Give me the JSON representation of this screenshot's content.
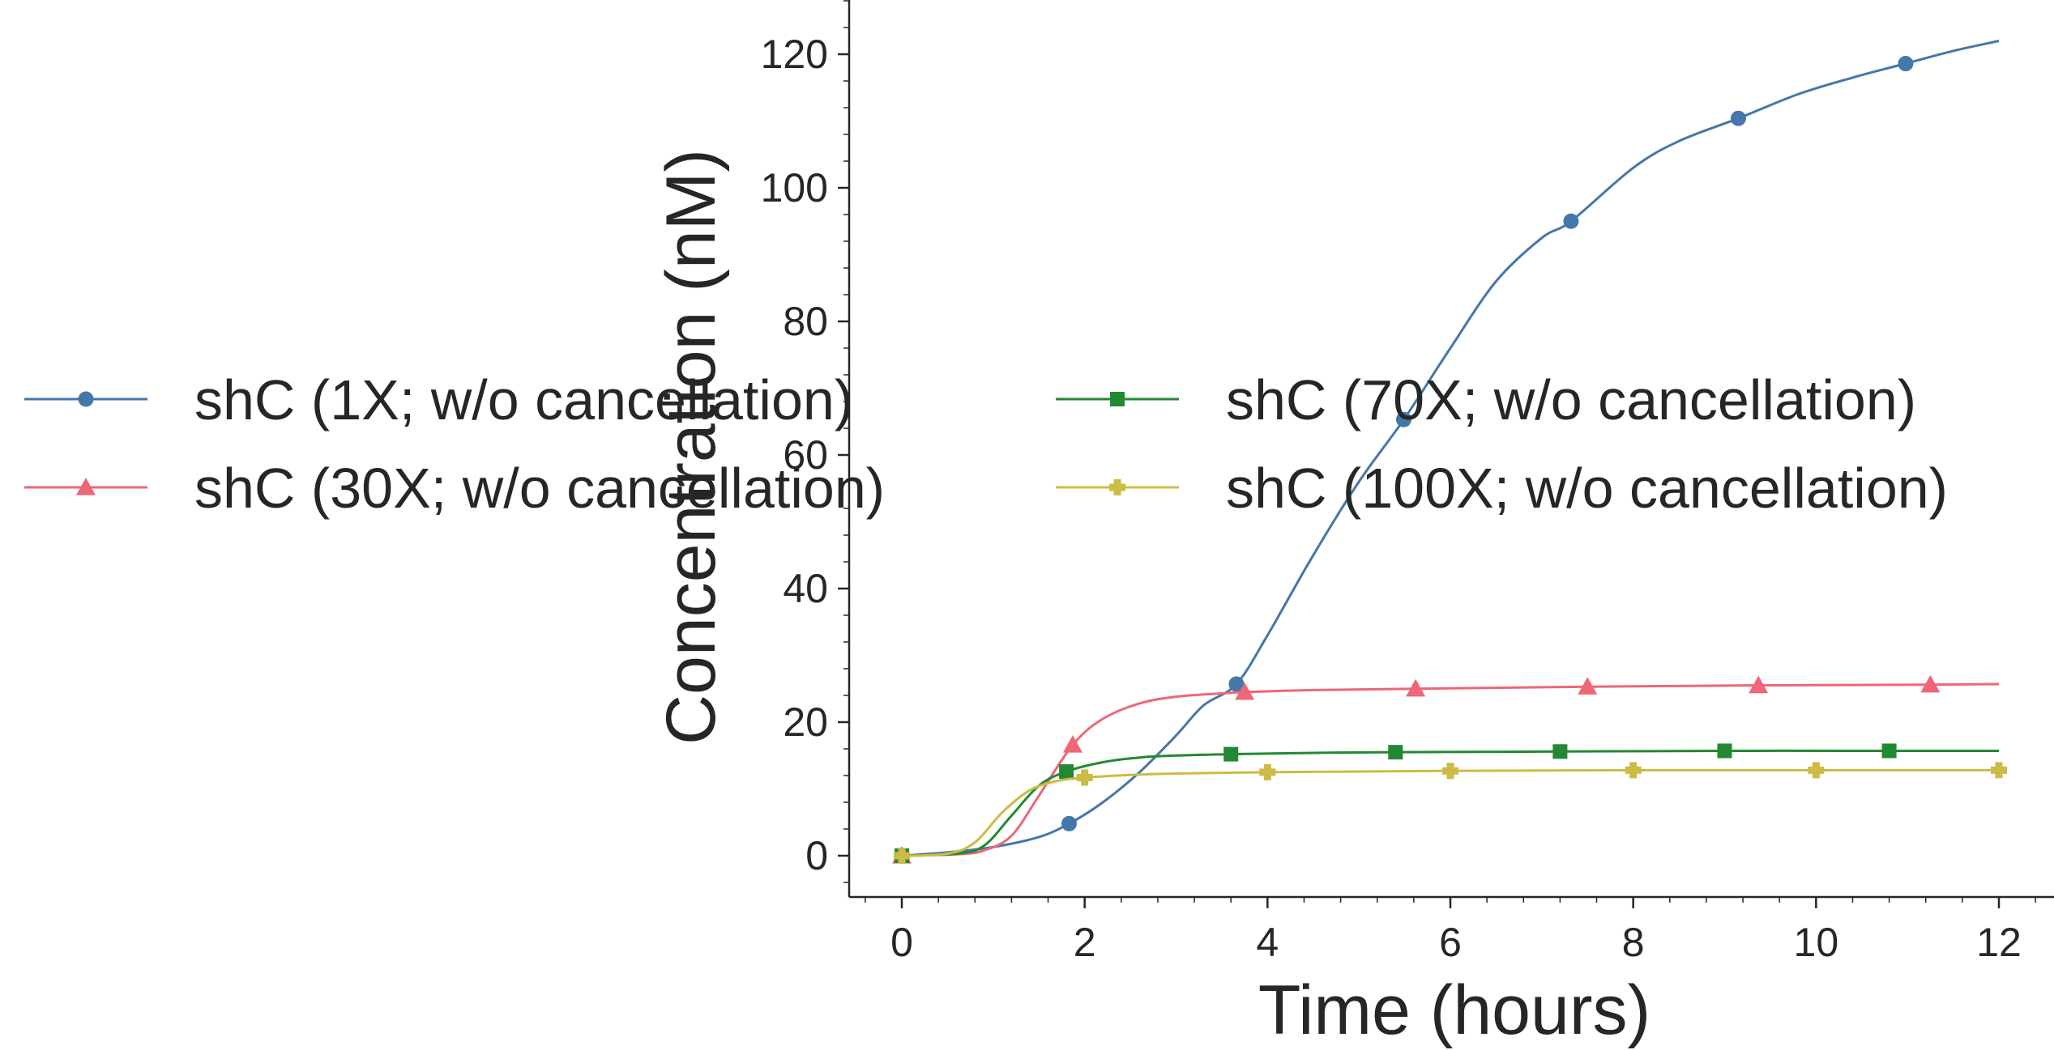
{
  "chart_data": {
    "type": "line",
    "title": "",
    "xlabel": "Time (hours)",
    "ylabel": "Concentration (nM)",
    "xlim": [
      -0.6,
      12.6
    ],
    "ylim": [
      -6,
      128
    ],
    "xticks": [
      0,
      2,
      4,
      6,
      8,
      10,
      12
    ],
    "xtick_labels": [
      "0",
      "2",
      "4",
      "6",
      "8",
      "10",
      "12"
    ],
    "yticks": [
      0,
      20,
      40,
      60,
      80,
      100,
      120
    ],
    "ytick_labels": [
      "0",
      "20",
      "40",
      "60",
      "80",
      "100",
      "120"
    ],
    "grid": false,
    "legend_placement": "center-left, two columns",
    "series": [
      {
        "name": "shC (1X; w/o cancellation)",
        "color": "#4477aa",
        "marker": "circle",
        "x": [
          0,
          0.5,
          1.0,
          1.5,
          1.83,
          2.2,
          2.6,
          3.0,
          3.3,
          3.66,
          4.0,
          4.5,
          5.0,
          5.49,
          6.0,
          6.5,
          7.0,
          7.32,
          8.0,
          8.5,
          9.15,
          9.8,
          10.4,
          10.98,
          11.5,
          12.0
        ],
        "y": [
          0,
          0.5,
          1.3,
          2.8,
          4.8,
          8.0,
          12.5,
          18.0,
          22.5,
          25.7,
          33.0,
          45.0,
          56.0,
          65.3,
          76.0,
          86.0,
          92.5,
          95.0,
          103.0,
          107.0,
          110.4,
          114.0,
          116.5,
          118.6,
          120.5,
          122.0
        ],
        "marker_x": [
          0,
          1.83,
          3.66,
          5.49,
          7.32,
          9.15,
          10.98
        ],
        "marker_y": [
          0,
          4.8,
          25.7,
          65.3,
          95.0,
          110.4,
          118.6
        ]
      },
      {
        "name": "shC (30X; w/o cancellation)",
        "color": "#ee6677",
        "marker": "triangle",
        "x": [
          0,
          0.6,
          0.9,
          1.2,
          1.5,
          1.87,
          2.2,
          2.6,
          3.0,
          3.5,
          3.75,
          4.5,
          5.62,
          7.5,
          9.37,
          11.25,
          12.0
        ],
        "y": [
          0,
          0.2,
          0.8,
          3.0,
          9.0,
          16.6,
          20.5,
          22.8,
          23.8,
          24.3,
          24.5,
          24.8,
          25.0,
          25.3,
          25.5,
          25.6,
          25.7
        ],
        "marker_x": [
          0,
          1.87,
          3.75,
          5.62,
          7.5,
          9.37,
          11.25
        ],
        "marker_y": [
          0,
          16.6,
          24.5,
          25.0,
          25.3,
          25.5,
          25.6
        ]
      },
      {
        "name": "shC (70X; w/o cancellation)",
        "color": "#228833",
        "marker": "square",
        "x": [
          0,
          0.6,
          0.9,
          1.2,
          1.5,
          1.8,
          2.2,
          2.6,
          3.0,
          3.6,
          4.5,
          5.4,
          7.2,
          9.0,
          10.8,
          12.0
        ],
        "y": [
          0,
          0.3,
          1.5,
          6.0,
          10.5,
          12.6,
          14.0,
          14.7,
          15.0,
          15.2,
          15.4,
          15.5,
          15.6,
          15.7,
          15.7,
          15.7
        ],
        "marker_x": [
          0,
          1.8,
          3.6,
          5.4,
          7.2,
          9.0,
          10.8
        ],
        "marker_y": [
          0,
          12.6,
          15.2,
          15.5,
          15.6,
          15.7,
          15.7
        ]
      },
      {
        "name": "shC (100X; w/o cancellation)",
        "color": "#ccbb44",
        "marker": "plus",
        "x": [
          0,
          0.5,
          0.8,
          1.1,
          1.4,
          1.7,
          2.0,
          2.5,
          3.0,
          4.0,
          5.0,
          6.0,
          8.0,
          10.0,
          12.0
        ],
        "y": [
          0,
          0.3,
          2.0,
          6.5,
          9.8,
          11.2,
          11.7,
          12.1,
          12.3,
          12.5,
          12.6,
          12.7,
          12.8,
          12.8,
          12.8
        ],
        "marker_x": [
          0,
          2.0,
          4.0,
          6.0,
          8.0,
          10.0,
          12.0
        ],
        "marker_y": [
          0,
          11.7,
          12.5,
          12.7,
          12.8,
          12.8,
          12.8
        ]
      }
    ]
  }
}
